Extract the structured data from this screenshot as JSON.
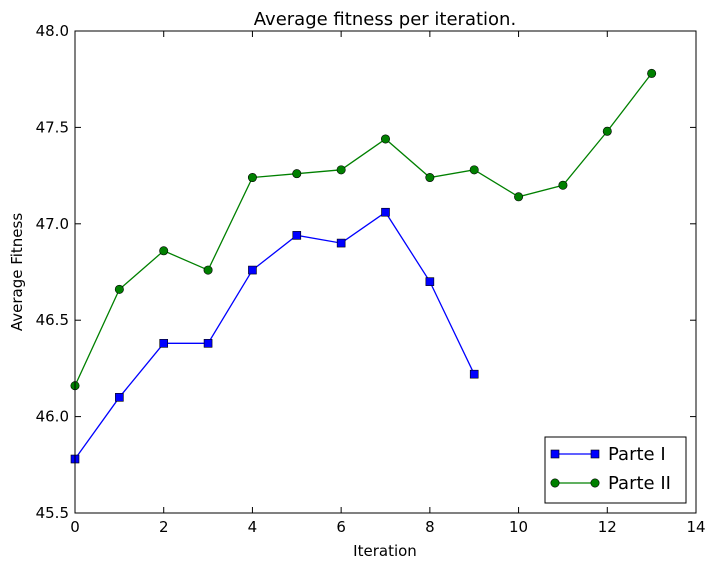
{
  "chart_data": {
    "type": "line",
    "title": "Average fitness per iteration.",
    "xlabel": "Iteration",
    "ylabel": "Average Fitness",
    "xlim": [
      0,
      14
    ],
    "ylim": [
      45.5,
      48.0
    ],
    "xticks": [
      0,
      2,
      4,
      6,
      8,
      10,
      12,
      14
    ],
    "xtick_labels": [
      "0",
      "2",
      "4",
      "6",
      "8",
      "10",
      "12",
      "14"
    ],
    "yticks": [
      45.5,
      46.0,
      46.5,
      47.0,
      47.5,
      48.0
    ],
    "ytick_labels": [
      "45.5",
      "46.0",
      "46.5",
      "47.0",
      "47.5",
      "48.0"
    ],
    "grid": false,
    "legend_position": "lower-right",
    "series": [
      {
        "name": "Parte I",
        "color": "#0000ff",
        "marker": "square",
        "x": [
          0,
          1,
          2,
          3,
          4,
          5,
          6,
          7,
          8,
          9
        ],
        "y": [
          45.78,
          46.1,
          46.38,
          46.38,
          46.76,
          46.94,
          46.9,
          47.06,
          46.7,
          46.22
        ]
      },
      {
        "name": "Parte II",
        "color": "#008000",
        "marker": "circle",
        "x": [
          0,
          1,
          2,
          3,
          4,
          5,
          6,
          7,
          8,
          9,
          10,
          11,
          12,
          13
        ],
        "y": [
          46.16,
          46.66,
          46.86,
          46.76,
          47.24,
          47.26,
          47.28,
          47.44,
          47.24,
          47.28,
          47.14,
          47.2,
          47.48,
          47.78
        ]
      }
    ]
  }
}
